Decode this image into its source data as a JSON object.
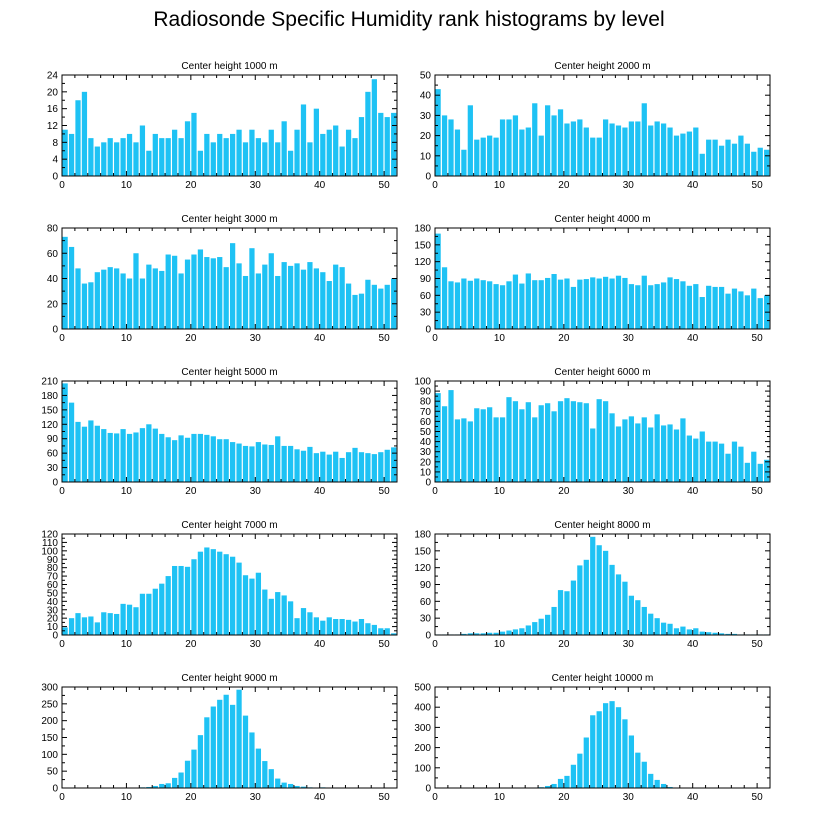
{
  "title": "Radiosonde Specific Humidity rank histograms by level",
  "colors": {
    "bar": "#1ec2f4",
    "axis": "#000000",
    "bar_edge": "#ffffff"
  },
  "chart_data": [
    {
      "type": "bar",
      "title": "Center height 1000 m",
      "xlim": [
        0,
        52
      ],
      "ylim": [
        0,
        24
      ],
      "x_ticks": [
        0,
        10,
        20,
        30,
        40,
        50
      ],
      "y_ticks": [
        0,
        4,
        8,
        12,
        16,
        20,
        24
      ],
      "values": [
        11,
        10,
        18,
        20,
        9,
        7,
        8,
        9,
        8,
        9,
        10,
        8,
        12,
        6,
        10,
        9,
        9,
        11,
        9,
        13,
        15,
        6,
        10,
        8,
        10,
        9,
        10,
        11,
        8,
        11,
        9,
        8,
        11,
        8,
        13,
        6,
        11,
        17,
        8,
        16,
        10,
        11,
        12,
        7,
        11,
        9,
        14,
        20,
        23,
        15,
        14,
        15
      ]
    },
    {
      "type": "bar",
      "title": "Center height 2000 m",
      "xlim": [
        0,
        52
      ],
      "ylim": [
        0,
        50
      ],
      "x_ticks": [
        0,
        10,
        20,
        30,
        40,
        50
      ],
      "y_ticks": [
        0,
        10,
        20,
        30,
        40,
        50
      ],
      "values": [
        43,
        30,
        28,
        23,
        13,
        35,
        18,
        19,
        20,
        19,
        28,
        28,
        30,
        23,
        24,
        36,
        20,
        35,
        30,
        33,
        26,
        27,
        28,
        24,
        19,
        19,
        28,
        26,
        25,
        24,
        27,
        27,
        36,
        25,
        27,
        26,
        24,
        20,
        21,
        22,
        24,
        11,
        18,
        18,
        15,
        18,
        16,
        20,
        16,
        12,
        14,
        13
      ]
    },
    {
      "type": "bar",
      "title": "Center height 3000 m",
      "xlim": [
        0,
        52
      ],
      "ylim": [
        0,
        80
      ],
      "x_ticks": [
        0,
        10,
        20,
        30,
        40,
        50
      ],
      "y_ticks": [
        0,
        20,
        40,
        60,
        80
      ],
      "values": [
        73,
        65,
        48,
        36,
        37,
        45,
        47,
        49,
        48,
        44,
        40,
        60,
        40,
        51,
        48,
        46,
        59,
        58,
        44,
        55,
        59,
        63,
        57,
        56,
        57,
        49,
        68,
        52,
        42,
        64,
        44,
        51,
        60,
        42,
        53,
        50,
        52,
        47,
        53,
        48,
        45,
        38,
        51,
        49,
        36,
        27,
        28,
        39,
        35,
        32,
        35,
        40
      ]
    },
    {
      "type": "bar",
      "title": "Center height 4000 m",
      "xlim": [
        0,
        52
      ],
      "ylim": [
        0,
        180
      ],
      "x_ticks": [
        0,
        10,
        20,
        30,
        40,
        50
      ],
      "y_ticks": [
        0,
        30,
        60,
        90,
        120,
        150,
        180
      ],
      "values": [
        170,
        110,
        85,
        83,
        90,
        86,
        90,
        87,
        85,
        80,
        78,
        85,
        97,
        81,
        99,
        87,
        87,
        91,
        98,
        88,
        90,
        75,
        88,
        89,
        92,
        90,
        93,
        90,
        95,
        91,
        80,
        78,
        95,
        78,
        80,
        83,
        92,
        89,
        85,
        77,
        80,
        57,
        77,
        75,
        75,
        63,
        72,
        67,
        60,
        72,
        55,
        60
      ]
    },
    {
      "type": "bar",
      "title": "Center height 5000 m",
      "xlim": [
        0,
        52
      ],
      "ylim": [
        0,
        210
      ],
      "x_ticks": [
        0,
        10,
        20,
        30,
        40,
        50
      ],
      "y_ticks": [
        0,
        30,
        60,
        90,
        120,
        150,
        180,
        210
      ],
      "values": [
        205,
        165,
        125,
        115,
        128,
        117,
        110,
        102,
        101,
        110,
        100,
        103,
        112,
        120,
        111,
        100,
        93,
        87,
        97,
        92,
        100,
        100,
        98,
        95,
        89,
        89,
        83,
        80,
        75,
        74,
        83,
        78,
        77,
        95,
        75,
        75,
        68,
        65,
        73,
        60,
        63,
        57,
        63,
        50,
        62,
        71,
        62,
        60,
        58,
        62,
        67,
        72
      ]
    },
    {
      "type": "bar",
      "title": "Center height 6000 m",
      "xlim": [
        0,
        52
      ],
      "ylim": [
        0,
        100
      ],
      "x_ticks": [
        0,
        10,
        20,
        30,
        40,
        50
      ],
      "y_ticks": [
        0,
        10,
        20,
        30,
        40,
        50,
        60,
        70,
        80,
        90,
        100
      ],
      "values": [
        88,
        75,
        91,
        62,
        63,
        60,
        73,
        72,
        74,
        64,
        64,
        84,
        80,
        72,
        79,
        64,
        76,
        78,
        70,
        80,
        83,
        80,
        79,
        78,
        53,
        82,
        80,
        68,
        55,
        62,
        65,
        58,
        64,
        54,
        67,
        56,
        57,
        52,
        63,
        46,
        43,
        50,
        40,
        40,
        38,
        28,
        40,
        35,
        19,
        30,
        18,
        22
      ]
    },
    {
      "type": "bar",
      "title": "Center height 7000 m",
      "xlim": [
        0,
        52
      ],
      "ylim": [
        0,
        120
      ],
      "x_ticks": [
        0,
        10,
        20,
        30,
        40,
        50
      ],
      "y_ticks": [
        0,
        10,
        20,
        30,
        40,
        50,
        60,
        70,
        80,
        90,
        100,
        110,
        120
      ],
      "values": [
        9,
        20,
        26,
        21,
        22,
        15,
        27,
        26,
        25,
        37,
        36,
        33,
        49,
        49,
        55,
        61,
        70,
        82,
        82,
        81,
        90,
        99,
        104,
        102,
        99,
        96,
        93,
        86,
        71,
        67,
        74,
        54,
        43,
        51,
        47,
        40,
        20,
        32,
        27,
        21,
        17,
        21,
        19,
        19,
        18,
        16,
        19,
        14,
        12,
        8,
        8,
        2
      ]
    },
    {
      "type": "bar",
      "title": "Center height 8000 m",
      "xlim": [
        0,
        52
      ],
      "ylim": [
        0,
        180
      ],
      "x_ticks": [
        0,
        10,
        20,
        30,
        40,
        50
      ],
      "y_ticks": [
        0,
        30,
        60,
        90,
        120,
        150,
        180
      ],
      "values": [
        1,
        1,
        1,
        1,
        2,
        3,
        3,
        3,
        4,
        4,
        6,
        8,
        10,
        12,
        17,
        23,
        29,
        36,
        50,
        80,
        78,
        97,
        124,
        134,
        175,
        160,
        150,
        125,
        108,
        95,
        70,
        62,
        50,
        38,
        30,
        22,
        20,
        12,
        15,
        10,
        12,
        6,
        5,
        4,
        3,
        2,
        2,
        1,
        1,
        1,
        1,
        1
      ]
    },
    {
      "type": "bar",
      "title": "Center height 9000 m",
      "xlim": [
        0,
        52
      ],
      "ylim": [
        0,
        300
      ],
      "x_ticks": [
        0,
        10,
        20,
        30,
        40,
        50
      ],
      "y_ticks": [
        0,
        50,
        100,
        150,
        200,
        250,
        300
      ],
      "values": [
        1,
        1,
        1,
        1,
        1,
        1,
        1,
        1,
        1,
        1,
        1,
        1,
        2,
        3,
        6,
        12,
        14,
        30,
        46,
        81,
        114,
        157,
        210,
        242,
        262,
        277,
        247,
        292,
        215,
        165,
        117,
        80,
        56,
        28,
        16,
        12,
        6,
        4,
        2,
        1,
        2,
        1,
        1,
        1,
        1,
        1,
        1,
        1,
        1,
        1,
        1,
        1
      ]
    },
    {
      "type": "bar",
      "title": "Center height 10000 m",
      "xlim": [
        0,
        52
      ],
      "ylim": [
        0,
        500
      ],
      "x_ticks": [
        0,
        10,
        20,
        30,
        40,
        50
      ],
      "y_ticks": [
        0,
        100,
        200,
        300,
        400,
        500
      ],
      "values": [
        1,
        1,
        1,
        1,
        1,
        1,
        1,
        1,
        1,
        1,
        1,
        1,
        1,
        1,
        1,
        2,
        4,
        10,
        20,
        45,
        60,
        115,
        170,
        250,
        360,
        380,
        420,
        430,
        400,
        340,
        260,
        175,
        130,
        70,
        40,
        20,
        5,
        2,
        1,
        1,
        1,
        1,
        1,
        1,
        1,
        1,
        1,
        1,
        1,
        1,
        1,
        1
      ]
    }
  ]
}
